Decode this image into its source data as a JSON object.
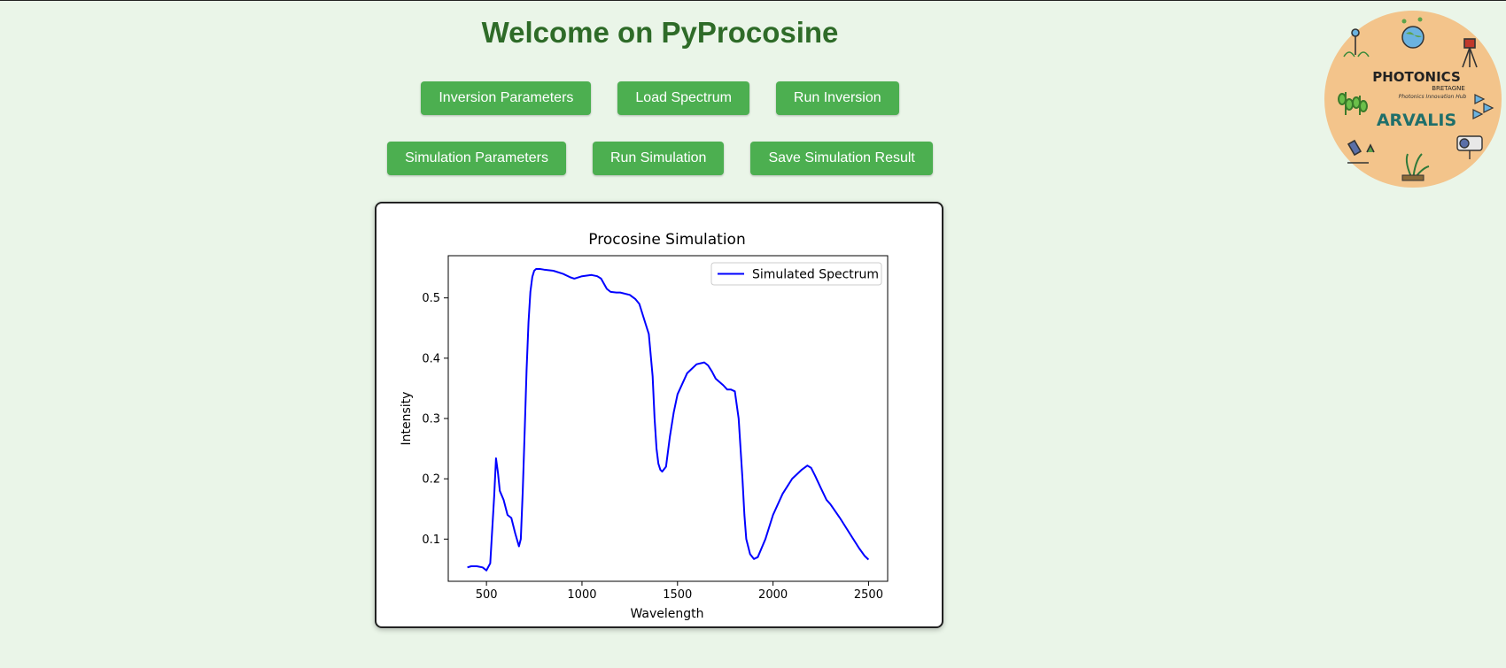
{
  "header": {
    "title": "Welcome on PyProcosine"
  },
  "toolbar": {
    "inversion_params": "Inversion Parameters",
    "load_spectrum": "Load Spectrum",
    "run_inversion": "Run Inversion",
    "simulation_params": "Simulation Parameters",
    "run_simulation": "Run Simulation",
    "save_simulation": "Save Simulation Result"
  },
  "logo": {
    "brand_photonics": "PHOTONICS",
    "brand_bretagne": "BRETAGNE",
    "brand_tagline": "Photonics Innovation Hub",
    "brand_arvalis": "ARVALIS",
    "background_color": "#f3c48b"
  },
  "colors": {
    "accent": "#4caf50",
    "title": "#2e6b28",
    "background": "#eaf5e8",
    "series": "#0000ff"
  },
  "chart_data": {
    "type": "line",
    "title": "Procosine Simulation",
    "xlabel": "Wavelength",
    "ylabel": "Intensity",
    "xlim": [
      300,
      2600
    ],
    "ylim": [
      0.03,
      0.57
    ],
    "xticks": [
      500,
      1000,
      1500,
      2000,
      2500
    ],
    "yticks": [
      0.1,
      0.2,
      0.3,
      0.4,
      0.5
    ],
    "legend_position": "top-right",
    "grid": false,
    "series": [
      {
        "name": "Simulated Spectrum",
        "color": "#0000ff",
        "x": [
          400,
          420,
          450,
          480,
          500,
          520,
          540,
          550,
          560,
          570,
          590,
          610,
          630,
          650,
          670,
          680,
          690,
          700,
          710,
          720,
          730,
          740,
          750,
          760,
          780,
          800,
          850,
          900,
          940,
          960,
          1000,
          1050,
          1080,
          1100,
          1130,
          1150,
          1180,
          1200,
          1250,
          1280,
          1300,
          1330,
          1350,
          1370,
          1380,
          1390,
          1400,
          1410,
          1420,
          1440,
          1460,
          1480,
          1500,
          1550,
          1600,
          1640,
          1660,
          1680,
          1700,
          1740,
          1760,
          1780,
          1800,
          1820,
          1840,
          1850,
          1860,
          1880,
          1900,
          1920,
          1940,
          1960,
          2000,
          2050,
          2100,
          2150,
          2180,
          2200,
          2220,
          2250,
          2280,
          2300,
          2350,
          2400,
          2450,
          2480,
          2500
        ],
        "y": [
          0.053,
          0.055,
          0.055,
          0.053,
          0.048,
          0.06,
          0.17,
          0.234,
          0.21,
          0.18,
          0.165,
          0.14,
          0.135,
          0.11,
          0.088,
          0.1,
          0.18,
          0.28,
          0.38,
          0.46,
          0.51,
          0.535,
          0.545,
          0.548,
          0.548,
          0.547,
          0.545,
          0.54,
          0.534,
          0.532,
          0.536,
          0.538,
          0.536,
          0.532,
          0.515,
          0.51,
          0.509,
          0.509,
          0.505,
          0.498,
          0.49,
          0.46,
          0.44,
          0.37,
          0.3,
          0.25,
          0.225,
          0.215,
          0.212,
          0.22,
          0.27,
          0.31,
          0.34,
          0.375,
          0.39,
          0.393,
          0.388,
          0.378,
          0.366,
          0.355,
          0.348,
          0.348,
          0.345,
          0.3,
          0.2,
          0.14,
          0.1,
          0.075,
          0.067,
          0.07,
          0.085,
          0.1,
          0.14,
          0.175,
          0.2,
          0.215,
          0.222,
          0.218,
          0.205,
          0.185,
          0.165,
          0.158,
          0.135,
          0.11,
          0.085,
          0.072,
          0.066
        ]
      }
    ]
  }
}
